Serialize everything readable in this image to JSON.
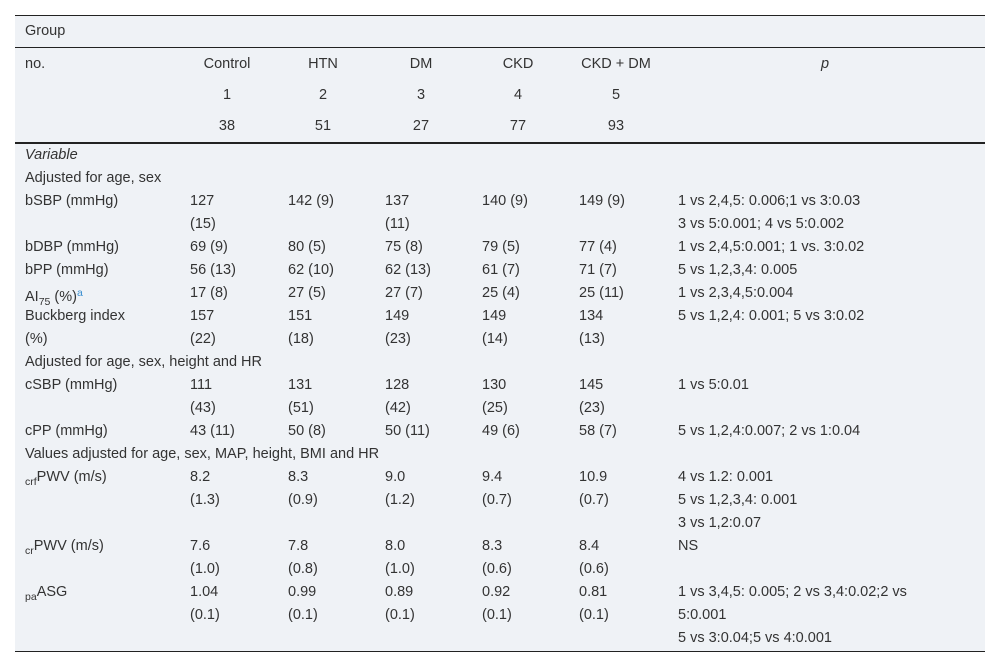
{
  "header": {
    "group": "Group",
    "no": "no.",
    "groups": [
      "Control",
      "HTN",
      "DM",
      "CKD",
      "CKD + DM"
    ],
    "p": "p",
    "numbers": [
      1,
      2,
      3,
      4,
      5
    ],
    "counts": [
      38,
      51,
      27,
      77,
      93
    ]
  },
  "body": {
    "variable": "Variable",
    "sections": [
      {
        "title": "Adjusted for age, sex",
        "rows": [
          {
            "label": [
              [
                {
                  "text": "bSBP (mmHg)"
                }
              ]
            ],
            "values": [
              [
                "127",
                "(15)"
              ],
              [
                "142 (9)"
              ],
              [
                "137",
                "(11)"
              ],
              [
                "140 (9)"
              ],
              [
                "149 (9)"
              ]
            ],
            "p": [
              "1 vs 2,4,5: 0.006;1 vs 3:0.03",
              "3 vs 5:0.001; 4 vs 5:0.002"
            ]
          },
          {
            "label": [
              [
                {
                  "text": "bDBP (mmHg)"
                }
              ]
            ],
            "values": [
              [
                "69 (9)"
              ],
              [
                "80 (5)"
              ],
              [
                "75 (8)"
              ],
              [
                "79 (5)"
              ],
              [
                "77 (4)"
              ]
            ],
            "p": [
              "1 vs 2,4,5:0.001; 1 vs. 3:0.02"
            ]
          },
          {
            "label": [
              [
                {
                  "text": "bPP (mmHg)"
                }
              ]
            ],
            "values": [
              [
                "56 (13)"
              ],
              [
                "62 (10)"
              ],
              [
                "62 (13)"
              ],
              [
                "61 (7)"
              ],
              [
                "71 (7)"
              ]
            ],
            "p": [
              "5 vs 1,2,3,4: 0.005"
            ]
          },
          {
            "label": [
              [
                {
                  "text": "AI"
                },
                {
                  "text": "75",
                  "style": "sub"
                },
                {
                  "text": " (%)"
                },
                {
                  "text": "a",
                  "style": "sup"
                }
              ]
            ],
            "values": [
              [
                "17 (8)"
              ],
              [
                "27 (5)"
              ],
              [
                "27 (7)"
              ],
              [
                "25 (4)"
              ],
              [
                "25 (11)"
              ]
            ],
            "p": [
              "1 vs 2,3,4,5:0.004"
            ]
          },
          {
            "label": [
              [
                {
                  "text": "Buckberg index"
                }
              ],
              [
                {
                  "text": "(%)"
                }
              ]
            ],
            "values": [
              [
                "157",
                "(22)"
              ],
              [
                "151",
                "(18)"
              ],
              [
                "149",
                "(23)"
              ],
              [
                "149",
                "(14)"
              ],
              [
                "134",
                "(13)"
              ]
            ],
            "p": [
              "5 vs 1,2,4: 0.001; 5 vs 3:0.02"
            ]
          }
        ]
      },
      {
        "title": "Adjusted for age, sex, height and HR",
        "rows": [
          {
            "label": [
              [
                {
                  "text": "cSBP (mmHg)"
                }
              ]
            ],
            "values": [
              [
                "111",
                "(43)"
              ],
              [
                "131",
                "(51)"
              ],
              [
                "128",
                "(42)"
              ],
              [
                "130",
                "(25)"
              ],
              [
                "145",
                "(23)"
              ]
            ],
            "p": [
              "1 vs 5:0.01"
            ]
          },
          {
            "label": [
              [
                {
                  "text": "cPP (mmHg)"
                }
              ]
            ],
            "values": [
              [
                "43 (11)"
              ],
              [
                "50 (8)"
              ],
              [
                "50 (11)"
              ],
              [
                "49 (6)"
              ],
              [
                "58 (7)"
              ]
            ],
            "p": [
              "5 vs 1,2,4:0.007; 2 vs 1:0.04"
            ]
          }
        ]
      },
      {
        "title": "Values adjusted for age, sex, MAP, height, BMI and HR",
        "rows": [
          {
            "label": [
              [
                {
                  "text": "crf",
                  "style": "sub"
                },
                {
                  "text": "PWV (m/s)"
                }
              ]
            ],
            "values": [
              [
                "8.2",
                "(1.3)"
              ],
              [
                "8.3",
                "(0.9)"
              ],
              [
                "9.0",
                "(1.2)"
              ],
              [
                "9.4",
                "(0.7)"
              ],
              [
                "10.9",
                "(0.7)"
              ]
            ],
            "p": [
              "4 vs 1.2: 0.001",
              "5 vs 1,2,3,4: 0.001",
              "3 vs 1,2:0.07"
            ]
          },
          {
            "label": [
              [
                {
                  "text": "cr",
                  "style": "sub"
                },
                {
                  "text": "PWV (m/s)"
                }
              ]
            ],
            "values": [
              [
                "7.6",
                "(1.0)"
              ],
              [
                "7.8",
                "(0.8)"
              ],
              [
                "8.0",
                "(1.0)"
              ],
              [
                "8.3",
                "(0.6)"
              ],
              [
                "8.4",
                "(0.6)"
              ]
            ],
            "p": [
              "NS"
            ]
          },
          {
            "label": [
              [
                {
                  "text": "pa",
                  "style": "sub"
                },
                {
                  "text": "ASG"
                }
              ]
            ],
            "values": [
              [
                "1.04",
                "(0.1)"
              ],
              [
                "0.99",
                "(0.1)"
              ],
              [
                "0.89",
                "(0.1)"
              ],
              [
                "0.92",
                "(0.1)"
              ],
              [
                "0.81",
                "(0.1)"
              ]
            ],
            "p": [
              "1 vs 3,4,5: 0.005; 2 vs 3,4:0.02;2 vs",
              "5:0.001",
              "5 vs 3:0.04;5 vs 4:0.001"
            ]
          }
        ]
      }
    ]
  }
}
